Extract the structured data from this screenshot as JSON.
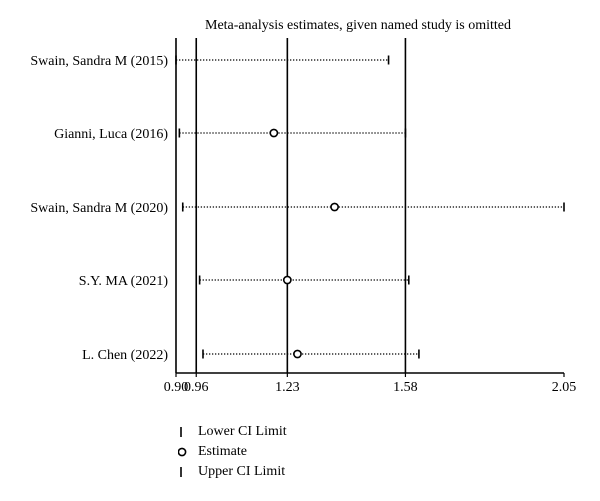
{
  "chart_data": {
    "type": "scatter",
    "title": "Meta-analysis estimates, given named study is omitted",
    "x_ticks": [
      0.9,
      0.96,
      1.23,
      1.58,
      2.05
    ],
    "x_tick_labels": [
      "0.90",
      "0.96",
      "1.23",
      "1.58",
      "2.05"
    ],
    "xlim": [
      0.9,
      2.05
    ],
    "vertical_lines": [
      0.9,
      0.96,
      1.23,
      1.58
    ],
    "studies": [
      {
        "label": "Swain, Sandra M (2015)",
        "lower": 0.9,
        "estimate": null,
        "upper": 1.53
      },
      {
        "label": "Gianni, Luca (2016)",
        "lower": 0.91,
        "estimate": 1.19,
        "upper": 1.58
      },
      {
        "label": "Swain, Sandra M (2020)",
        "lower": 0.92,
        "estimate": 1.37,
        "upper": 2.05
      },
      {
        "label": "S.Y. MA (2021)",
        "lower": 0.97,
        "estimate": 1.23,
        "upper": 1.59
      },
      {
        "label": "L. Chen (2022)",
        "lower": 0.98,
        "estimate": 1.26,
        "upper": 1.62
      }
    ],
    "legend": [
      "Lower CI Limit",
      "Estimate",
      "Upper CI Limit"
    ]
  }
}
